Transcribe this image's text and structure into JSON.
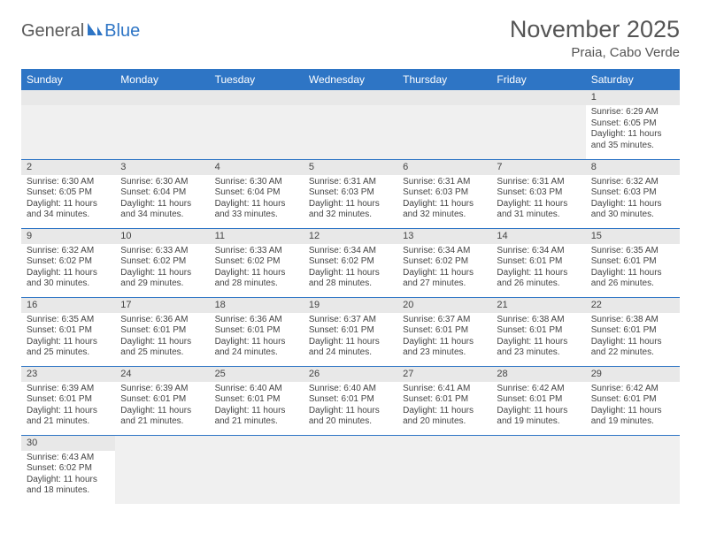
{
  "logo": {
    "text1": "General",
    "text2": "Blue"
  },
  "title": "November 2025",
  "location": "Praia, Cabo Verde",
  "colors": {
    "header_bg": "#2e75c5",
    "header_text": "#ffffff",
    "daynum_bg": "#e8e8e8",
    "empty_bg": "#f0f0f0",
    "border": "#2e75c5",
    "text": "#444444",
    "title_text": "#555555"
  },
  "weekdays": [
    "Sunday",
    "Monday",
    "Tuesday",
    "Wednesday",
    "Thursday",
    "Friday",
    "Saturday"
  ],
  "weeks": [
    [
      null,
      null,
      null,
      null,
      null,
      null,
      {
        "n": "1",
        "sr": "Sunrise: 6:29 AM",
        "ss": "Sunset: 6:05 PM",
        "dl1": "Daylight: 11 hours",
        "dl2": "and 35 minutes."
      }
    ],
    [
      {
        "n": "2",
        "sr": "Sunrise: 6:30 AM",
        "ss": "Sunset: 6:05 PM",
        "dl1": "Daylight: 11 hours",
        "dl2": "and 34 minutes."
      },
      {
        "n": "3",
        "sr": "Sunrise: 6:30 AM",
        "ss": "Sunset: 6:04 PM",
        "dl1": "Daylight: 11 hours",
        "dl2": "and 34 minutes."
      },
      {
        "n": "4",
        "sr": "Sunrise: 6:30 AM",
        "ss": "Sunset: 6:04 PM",
        "dl1": "Daylight: 11 hours",
        "dl2": "and 33 minutes."
      },
      {
        "n": "5",
        "sr": "Sunrise: 6:31 AM",
        "ss": "Sunset: 6:03 PM",
        "dl1": "Daylight: 11 hours",
        "dl2": "and 32 minutes."
      },
      {
        "n": "6",
        "sr": "Sunrise: 6:31 AM",
        "ss": "Sunset: 6:03 PM",
        "dl1": "Daylight: 11 hours",
        "dl2": "and 32 minutes."
      },
      {
        "n": "7",
        "sr": "Sunrise: 6:31 AM",
        "ss": "Sunset: 6:03 PM",
        "dl1": "Daylight: 11 hours",
        "dl2": "and 31 minutes."
      },
      {
        "n": "8",
        "sr": "Sunrise: 6:32 AM",
        "ss": "Sunset: 6:03 PM",
        "dl1": "Daylight: 11 hours",
        "dl2": "and 30 minutes."
      }
    ],
    [
      {
        "n": "9",
        "sr": "Sunrise: 6:32 AM",
        "ss": "Sunset: 6:02 PM",
        "dl1": "Daylight: 11 hours",
        "dl2": "and 30 minutes."
      },
      {
        "n": "10",
        "sr": "Sunrise: 6:33 AM",
        "ss": "Sunset: 6:02 PM",
        "dl1": "Daylight: 11 hours",
        "dl2": "and 29 minutes."
      },
      {
        "n": "11",
        "sr": "Sunrise: 6:33 AM",
        "ss": "Sunset: 6:02 PM",
        "dl1": "Daylight: 11 hours",
        "dl2": "and 28 minutes."
      },
      {
        "n": "12",
        "sr": "Sunrise: 6:34 AM",
        "ss": "Sunset: 6:02 PM",
        "dl1": "Daylight: 11 hours",
        "dl2": "and 28 minutes."
      },
      {
        "n": "13",
        "sr": "Sunrise: 6:34 AM",
        "ss": "Sunset: 6:02 PM",
        "dl1": "Daylight: 11 hours",
        "dl2": "and 27 minutes."
      },
      {
        "n": "14",
        "sr": "Sunrise: 6:34 AM",
        "ss": "Sunset: 6:01 PM",
        "dl1": "Daylight: 11 hours",
        "dl2": "and 26 minutes."
      },
      {
        "n": "15",
        "sr": "Sunrise: 6:35 AM",
        "ss": "Sunset: 6:01 PM",
        "dl1": "Daylight: 11 hours",
        "dl2": "and 26 minutes."
      }
    ],
    [
      {
        "n": "16",
        "sr": "Sunrise: 6:35 AM",
        "ss": "Sunset: 6:01 PM",
        "dl1": "Daylight: 11 hours",
        "dl2": "and 25 minutes."
      },
      {
        "n": "17",
        "sr": "Sunrise: 6:36 AM",
        "ss": "Sunset: 6:01 PM",
        "dl1": "Daylight: 11 hours",
        "dl2": "and 25 minutes."
      },
      {
        "n": "18",
        "sr": "Sunrise: 6:36 AM",
        "ss": "Sunset: 6:01 PM",
        "dl1": "Daylight: 11 hours",
        "dl2": "and 24 minutes."
      },
      {
        "n": "19",
        "sr": "Sunrise: 6:37 AM",
        "ss": "Sunset: 6:01 PM",
        "dl1": "Daylight: 11 hours",
        "dl2": "and 24 minutes."
      },
      {
        "n": "20",
        "sr": "Sunrise: 6:37 AM",
        "ss": "Sunset: 6:01 PM",
        "dl1": "Daylight: 11 hours",
        "dl2": "and 23 minutes."
      },
      {
        "n": "21",
        "sr": "Sunrise: 6:38 AM",
        "ss": "Sunset: 6:01 PM",
        "dl1": "Daylight: 11 hours",
        "dl2": "and 23 minutes."
      },
      {
        "n": "22",
        "sr": "Sunrise: 6:38 AM",
        "ss": "Sunset: 6:01 PM",
        "dl1": "Daylight: 11 hours",
        "dl2": "and 22 minutes."
      }
    ],
    [
      {
        "n": "23",
        "sr": "Sunrise: 6:39 AM",
        "ss": "Sunset: 6:01 PM",
        "dl1": "Daylight: 11 hours",
        "dl2": "and 21 minutes."
      },
      {
        "n": "24",
        "sr": "Sunrise: 6:39 AM",
        "ss": "Sunset: 6:01 PM",
        "dl1": "Daylight: 11 hours",
        "dl2": "and 21 minutes."
      },
      {
        "n": "25",
        "sr": "Sunrise: 6:40 AM",
        "ss": "Sunset: 6:01 PM",
        "dl1": "Daylight: 11 hours",
        "dl2": "and 21 minutes."
      },
      {
        "n": "26",
        "sr": "Sunrise: 6:40 AM",
        "ss": "Sunset: 6:01 PM",
        "dl1": "Daylight: 11 hours",
        "dl2": "and 20 minutes."
      },
      {
        "n": "27",
        "sr": "Sunrise: 6:41 AM",
        "ss": "Sunset: 6:01 PM",
        "dl1": "Daylight: 11 hours",
        "dl2": "and 20 minutes."
      },
      {
        "n": "28",
        "sr": "Sunrise: 6:42 AM",
        "ss": "Sunset: 6:01 PM",
        "dl1": "Daylight: 11 hours",
        "dl2": "and 19 minutes."
      },
      {
        "n": "29",
        "sr": "Sunrise: 6:42 AM",
        "ss": "Sunset: 6:01 PM",
        "dl1": "Daylight: 11 hours",
        "dl2": "and 19 minutes."
      }
    ],
    [
      {
        "n": "30",
        "sr": "Sunrise: 6:43 AM",
        "ss": "Sunset: 6:02 PM",
        "dl1": "Daylight: 11 hours",
        "dl2": "and 18 minutes."
      },
      null,
      null,
      null,
      null,
      null,
      null
    ]
  ]
}
